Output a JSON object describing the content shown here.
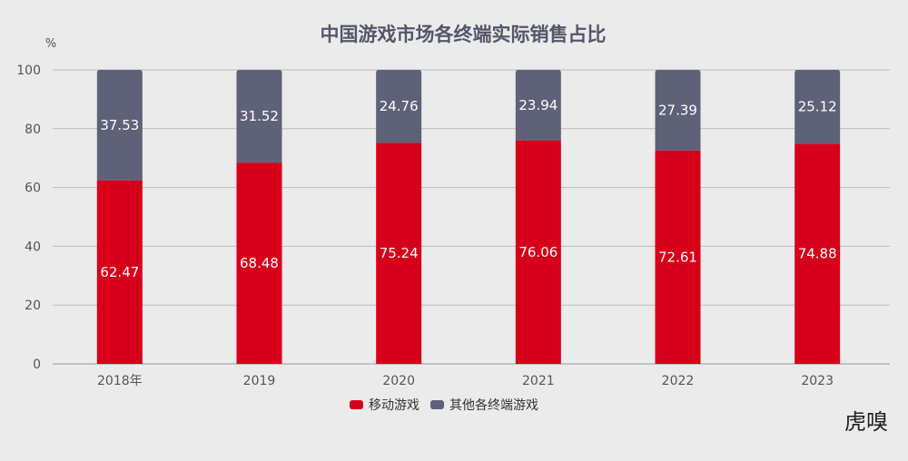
{
  "chart_data": {
    "type": "bar",
    "stacked": true,
    "title": "中国游戏市场各终端实际销售占比",
    "ylabel": "%",
    "xlabel": "",
    "ylim": [
      0,
      100
    ],
    "yticks": [
      0,
      20,
      40,
      60,
      80,
      100
    ],
    "grid": true,
    "legend_position": "bottom",
    "categories": [
      "2018年",
      "2019",
      "2020",
      "2021",
      "2022",
      "2023"
    ],
    "series": [
      {
        "name": "移动游戏",
        "color": "#d7001a",
        "values": [
          62.47,
          68.48,
          75.24,
          76.06,
          72.61,
          74.88
        ]
      },
      {
        "name": "其他各终端游戏",
        "color": "#5f6178",
        "values": [
          37.53,
          31.52,
          24.76,
          23.94,
          27.39,
          25.12
        ]
      }
    ]
  },
  "watermark": "虎嗅"
}
